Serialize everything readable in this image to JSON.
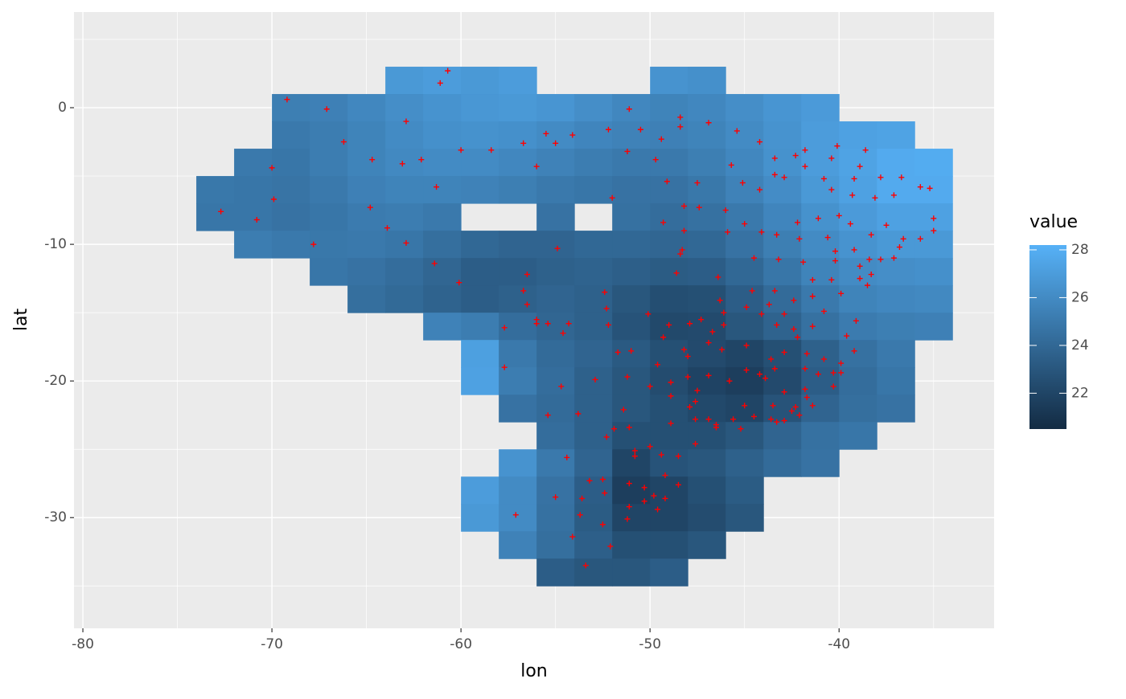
{
  "chart_data": {
    "type": "raster",
    "x_label": "lon",
    "y_label": "lat",
    "legend_title": "value",
    "xlim": [
      -80.47,
      -31.8
    ],
    "ylim": [
      -38.1,
      7.0
    ],
    "xticks": [
      -80,
      -70,
      -60,
      -50,
      -40
    ],
    "yticks": [
      -30,
      -20,
      -10,
      0
    ],
    "grid": true,
    "x": [
      -73,
      -71,
      -69,
      -67,
      -65,
      -63,
      -61,
      -59,
      -57,
      -55,
      -53,
      -51,
      -49,
      -47,
      -45,
      -43,
      -41,
      -39,
      -37,
      -35
    ],
    "y": [
      2,
      0,
      -2,
      -4,
      -6,
      -8,
      -10,
      -12,
      -14,
      -16,
      -18,
      -20,
      -22,
      -24,
      -26,
      -28,
      -30,
      -32,
      -34
    ],
    "values": [
      [
        null,
        null,
        null,
        null,
        null,
        26.8,
        27.0,
        26.8,
        27.0,
        null,
        null,
        null,
        26.5,
        26.3,
        null,
        null,
        null,
        null,
        null,
        null
      ],
      [
        null,
        null,
        25.3,
        25.4,
        25.8,
        26.2,
        26.5,
        26.7,
        26.8,
        26.6,
        26.2,
        25.8,
        25.6,
        25.8,
        26.2,
        26.6,
        26.9,
        null,
        null,
        null
      ],
      [
        null,
        null,
        25.0,
        25.2,
        25.6,
        26.0,
        26.3,
        26.4,
        26.3,
        26.0,
        25.7,
        25.5,
        25.4,
        25.6,
        26.0,
        26.5,
        27.0,
        27.3,
        27.4,
        null
      ],
      [
        null,
        25.0,
        24.8,
        25.2,
        25.6,
        25.9,
        26.0,
        26.0,
        25.8,
        25.5,
        25.2,
        25.0,
        25.0,
        25.3,
        25.8,
        26.4,
        27.0,
        27.4,
        27.8,
        27.9
      ],
      [
        24.9,
        24.8,
        24.7,
        25.0,
        25.4,
        25.6,
        25.6,
        25.5,
        25.3,
        25.0,
        24.8,
        24.6,
        24.6,
        24.9,
        25.5,
        26.1,
        26.8,
        27.3,
        27.8,
        27.8
      ],
      [
        24.8,
        24.8,
        24.6,
        24.8,
        25.1,
        25.2,
        25.0,
        null,
        null,
        24.6,
        null,
        24.5,
        24.3,
        24.5,
        25.0,
        25.7,
        26.4,
        26.9,
        27.3,
        27.3
      ],
      [
        null,
        25.2,
        25.0,
        24.9,
        25.0,
        24.8,
        24.4,
        24.0,
        23.8,
        23.8,
        24.0,
        24.0,
        23.9,
        24.0,
        24.6,
        25.3,
        26.0,
        26.5,
        26.8,
        26.8
      ],
      [
        null,
        null,
        null,
        24.8,
        24.6,
        24.3,
        23.9,
        23.4,
        23.4,
        23.6,
        23.7,
        23.5,
        23.3,
        23.4,
        24.0,
        24.8,
        25.6,
        26.0,
        26.2,
        26.3
      ],
      [
        null,
        null,
        null,
        null,
        24.4,
        24.1,
        23.7,
        23.4,
        23.6,
        23.8,
        23.6,
        23.0,
        22.5,
        22.6,
        23.4,
        24.2,
        25.0,
        25.6,
        25.8,
        25.9
      ],
      [
        null,
        null,
        null,
        null,
        null,
        null,
        25.5,
        25.2,
        24.3,
        23.9,
        23.6,
        22.8,
        22.2,
        22.3,
        23.0,
        23.7,
        24.5,
        25.1,
        25.3,
        25.4
      ],
      [
        null,
        null,
        null,
        null,
        null,
        null,
        null,
        27.2,
        25.0,
        24.2,
        23.8,
        23.2,
        22.6,
        22.3,
        22.0,
        22.6,
        23.6,
        24.5,
        25.0,
        null
      ],
      [
        null,
        null,
        null,
        null,
        null,
        null,
        null,
        27.3,
        25.2,
        24.3,
        23.6,
        23.0,
        22.4,
        21.9,
        21.6,
        22.3,
        23.4,
        24.3,
        24.8,
        null
      ],
      [
        null,
        null,
        null,
        null,
        null,
        null,
        null,
        null,
        24.6,
        24.2,
        23.6,
        23.0,
        22.6,
        22.2,
        22.0,
        22.8,
        23.8,
        24.4,
        24.6,
        null
      ],
      [
        null,
        null,
        null,
        null,
        null,
        null,
        null,
        null,
        null,
        24.3,
        23.6,
        22.6,
        22.6,
        22.6,
        23.0,
        23.8,
        24.5,
        24.8,
        null,
        null
      ],
      [
        null,
        null,
        null,
        null,
        null,
        null,
        null,
        null,
        26.5,
        25.0,
        23.8,
        22.0,
        22.8,
        23.0,
        23.6,
        24.2,
        24.6,
        null,
        null,
        null
      ],
      [
        null,
        null,
        null,
        null,
        null,
        null,
        null,
        27.0,
        26.0,
        24.6,
        23.4,
        21.6,
        22.0,
        22.6,
        23.3,
        null,
        null,
        null,
        null,
        null
      ],
      [
        null,
        null,
        null,
        null,
        null,
        null,
        null,
        26.8,
        26.0,
        24.5,
        23.3,
        22.0,
        22.0,
        22.4,
        23.0,
        null,
        null,
        null,
        null,
        null
      ],
      [
        null,
        null,
        null,
        null,
        null,
        null,
        null,
        null,
        25.5,
        24.4,
        23.5,
        22.6,
        22.6,
        23.0,
        null,
        null,
        null,
        null,
        null,
        null
      ],
      [
        null,
        null,
        null,
        null,
        null,
        null,
        null,
        null,
        null,
        23.4,
        23.0,
        23.0,
        23.4,
        null,
        null,
        null,
        null,
        null,
        null,
        null
      ]
    ],
    "colorbar": {
      "lim": [
        20.5,
        28.2
      ],
      "ticks": [
        22,
        24,
        26,
        28
      ],
      "low": "#132B43",
      "high": "#56B1F7"
    },
    "points": {
      "color": "#ff0000",
      "x": [
        -60.7,
        -61.1,
        -69.2,
        -67.1,
        -62.9,
        -51.1,
        -55.5,
        -54.1,
        -52.2,
        -50.5,
        -48.4,
        -48.4,
        -46.9,
        -45.4,
        -66.2,
        -60.0,
        -58.4,
        -56.7,
        -55.0,
        -51.2,
        -49.4,
        -44.2,
        -40.1,
        -41.8,
        -64.7,
        -63.1,
        -62.1,
        -70.0,
        -56.0,
        -49.7,
        -45.7,
        -43.4,
        -42.3,
        -41.8,
        -40.4,
        -38.6,
        -38.9,
        -37.8,
        -39.2,
        -40.8,
        -42.9,
        -43.4,
        -45.1,
        -49.1,
        -47.5,
        -44.2,
        -40.4,
        -39.3,
        -38.1,
        -36.7,
        -37.1,
        -35.7,
        -35.2,
        -61.3,
        -69.9,
        -72.7,
        -70.8,
        -64.8,
        -63.9,
        -67.8,
        -62.9,
        -52.0,
        -48.2,
        -47.4,
        -46.0,
        -49.3,
        -48.2,
        -45.9,
        -44.1,
        -43.3,
        -42.1,
        -45.0,
        -42.2,
        -41.1,
        -40.0,
        -39.4,
        -40.6,
        -38.3,
        -37.5,
        -36.6,
        -35.0,
        -35.0,
        -35.7,
        -36.8,
        -39.2,
        -40.2,
        -40.2,
        -38.4,
        -37.8,
        -37.1,
        -43.2,
        -44.5,
        -41.9,
        -48.3,
        -48.4,
        -54.9,
        -61.4,
        -60.1,
        -56.5,
        -48.6,
        -46.4,
        -41.4,
        -40.4,
        -38.9,
        -38.9,
        -38.3,
        -38.5,
        -44.6,
        -43.4,
        -41.4,
        -39.9,
        -52.4,
        -56.7,
        -56.5,
        -52.3,
        -46.3,
        -44.9,
        -43.7,
        -42.4,
        -40.8,
        -50.1,
        -44.1,
        -42.9,
        -46.1,
        -57.7,
        -56.0,
        -56.0,
        -55.4,
        -54.3,
        -54.6,
        -52.2,
        -49.0,
        -47.9,
        -47.3,
        -46.1,
        -46.7,
        -43.3,
        -41.4,
        -39.1,
        -39.6,
        -42.4,
        -42.2,
        -49.3,
        -51.7,
        -51.0,
        -48.2,
        -48.0,
        -46.9,
        -46.2,
        -44.9,
        -43.6,
        -42.9,
        -41.7,
        -40.8,
        -39.2,
        -39.9,
        -49.6,
        -57.7,
        -52.9,
        -51.2,
        -48.9,
        -48.0,
        -46.9,
        -45.8,
        -44.9,
        -44.2,
        -43.9,
        -43.4,
        -41.8,
        -41.1,
        -40.3,
        -39.9,
        -40.3,
        -41.8,
        -42.9,
        -41.7,
        -47.5,
        -50.0,
        -54.7,
        -48.9,
        -47.6,
        -47.9,
        -45.0,
        -43.5,
        -42.3,
        -42.1,
        -41.4,
        -51.4,
        -55.4,
        -53.8,
        -48.9,
        -47.6,
        -46.9,
        -46.5,
        -45.6,
        -44.5,
        -43.6,
        -43.3,
        -42.9,
        -42.5,
        -45.2,
        -46.5,
        -51.1,
        -51.9,
        -52.3,
        -47.6,
        -50.0,
        -50.8,
        -50.8,
        -49.4,
        -48.5,
        -54.4,
        -49.2,
        -48.5,
        -51.1,
        -53.2,
        -52.5,
        -50.3,
        -49.8,
        -49.2,
        -50.3,
        -52.4,
        -55.0,
        -53.6,
        -51.1,
        -49.6,
        -53.7,
        -57.1,
        -51.2,
        -52.5,
        -54.1,
        -52.1,
        -53.4
      ],
      "y": [
        2.7,
        1.8,
        0.6,
        -0.1,
        -1.0,
        -0.1,
        -1.9,
        -2.0,
        -1.6,
        -1.6,
        -0.7,
        -1.4,
        -1.1,
        -1.7,
        -2.5,
        -3.1,
        -3.1,
        -2.6,
        -2.6,
        -3.2,
        -2.3,
        -2.5,
        -2.8,
        -3.1,
        -3.8,
        -4.1,
        -3.8,
        -4.4,
        -4.3,
        -3.8,
        -4.2,
        -3.7,
        -3.5,
        -4.3,
        -3.7,
        -3.1,
        -4.3,
        -5.1,
        -5.2,
        -5.2,
        -5.1,
        -4.9,
        -5.5,
        -5.4,
        -5.5,
        -6.0,
        -6.0,
        -6.4,
        -6.6,
        -5.1,
        -6.4,
        -5.8,
        -5.9,
        -5.8,
        -6.7,
        -7.6,
        -8.2,
        -7.3,
        -8.8,
        -10.0,
        -9.9,
        -6.6,
        -7.2,
        -7.3,
        -7.5,
        -8.4,
        -9.0,
        -9.1,
        -9.1,
        -9.3,
        -9.6,
        -8.5,
        -8.4,
        -8.1,
        -7.9,
        -8.5,
        -9.5,
        -9.3,
        -8.6,
        -9.6,
        -9.0,
        -8.1,
        -9.6,
        -10.2,
        -10.4,
        -10.5,
        -11.2,
        -11.1,
        -11.1,
        -11.0,
        -11.1,
        -11.0,
        -11.3,
        -10.4,
        -10.7,
        -10.3,
        -11.4,
        -12.8,
        -12.2,
        -12.1,
        -12.4,
        -12.6,
        -12.6,
        -11.6,
        -12.5,
        -12.2,
        -13.0,
        -13.4,
        -13.4,
        -13.8,
        -13.6,
        -13.5,
        -13.4,
        -14.4,
        -14.7,
        -14.1,
        -14.6,
        -14.4,
        -14.1,
        -14.9,
        -15.1,
        -15.1,
        -15.1,
        -15.0,
        -16.1,
        -15.5,
        -15.8,
        -15.8,
        -15.8,
        -16.5,
        -15.9,
        -15.9,
        -15.8,
        -15.5,
        -15.9,
        -16.4,
        -15.9,
        -16.0,
        -15.6,
        -16.7,
        -16.2,
        -16.8,
        -16.8,
        -17.9,
        -17.8,
        -17.7,
        -18.2,
        -17.2,
        -17.7,
        -17.4,
        -18.4,
        -17.9,
        -18.0,
        -18.4,
        -17.8,
        -18.7,
        -18.8,
        -19.0,
        -19.9,
        -19.7,
        -20.1,
        -19.7,
        -19.6,
        -20.0,
        -19.2,
        -19.5,
        -19.8,
        -19.1,
        -19.1,
        -19.5,
        -19.4,
        -19.4,
        -20.4,
        -20.6,
        -20.8,
        -21.2,
        -20.7,
        -20.4,
        -20.4,
        -21.1,
        -21.5,
        -21.9,
        -21.8,
        -21.8,
        -21.9,
        -22.5,
        -21.8,
        -22.1,
        -22.5,
        -22.4,
        -23.1,
        -22.8,
        -22.8,
        -23.2,
        -22.8,
        -22.6,
        -22.8,
        -23.0,
        -22.9,
        -22.2,
        -23.5,
        -23.4,
        -23.4,
        -23.5,
        -24.1,
        -24.6,
        -24.8,
        -25.1,
        -25.5,
        -25.4,
        -25.5,
        -25.6,
        -26.9,
        -27.6,
        -27.5,
        -27.3,
        -27.2,
        -27.8,
        -28.4,
        -28.6,
        -28.8,
        -28.2,
        -28.5,
        -28.6,
        -29.2,
        -29.4,
        -29.8,
        -29.8,
        -30.1,
        -30.5,
        -31.4,
        -32.1,
        -33.5
      ]
    }
  }
}
